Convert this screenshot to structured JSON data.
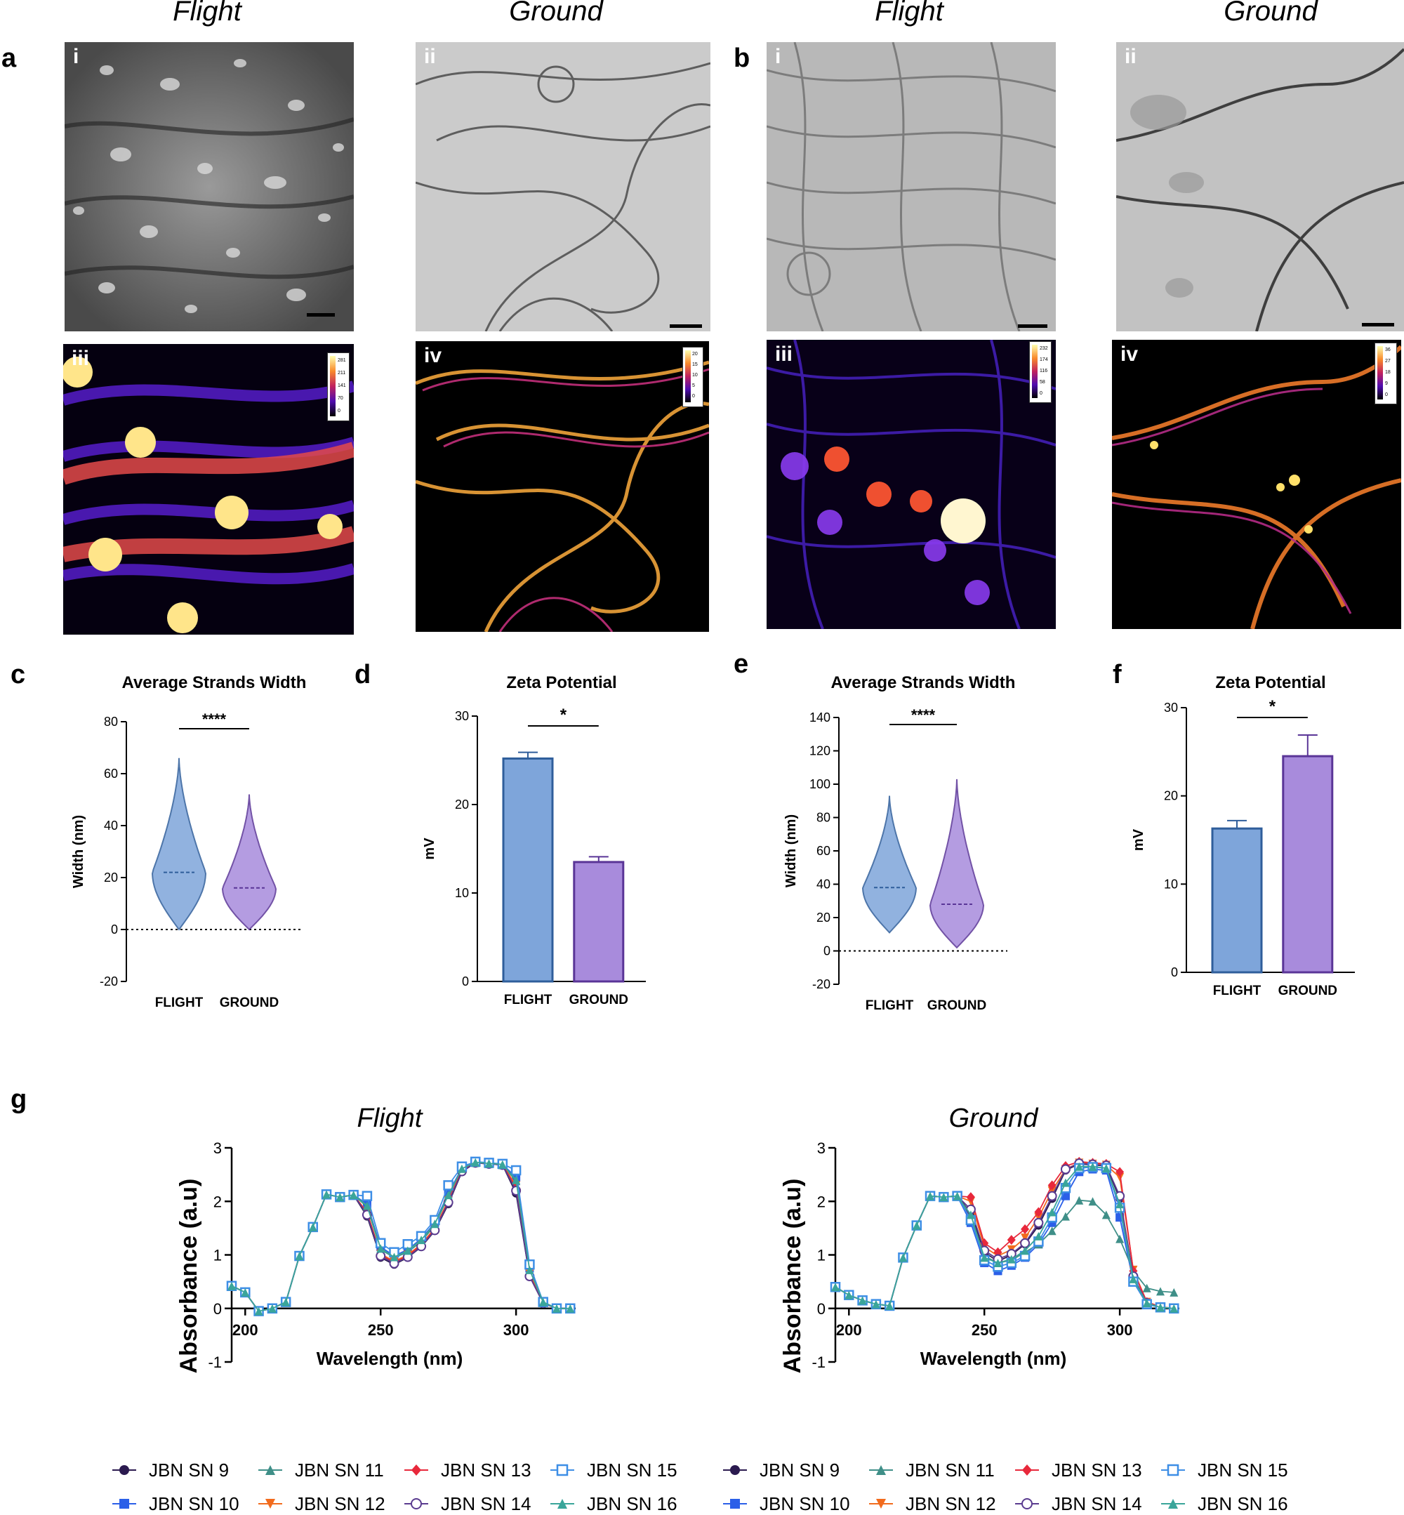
{
  "headers": [
    "Flight",
    "Ground",
    "Flight",
    "Ground"
  ],
  "panel_letters": {
    "a": "a",
    "b": "b",
    "c": "c",
    "d": "d",
    "e": "e",
    "f": "f",
    "g": "g"
  },
  "sub_labels": {
    "a_i": "i",
    "a_ii": "ii",
    "a_iii": "iii",
    "a_iv": "iv",
    "b_i": "i",
    "b_ii": "ii",
    "b_iii": "iii",
    "b_iv": "iv"
  },
  "colorbar_ticks": {
    "a_iii": [
      "281",
      "211",
      "141",
      "70",
      "0"
    ],
    "a_iv": [
      "20",
      "15",
      "10",
      "5",
      "0"
    ],
    "b_iii": [
      "232",
      "174",
      "116",
      "58",
      "0"
    ],
    "b_iv": [
      "36",
      "27",
      "18",
      "9",
      "0"
    ]
  },
  "colors": {
    "flight_fill": "#7ea5da",
    "flight_edge": "#2f5e9b",
    "ground_fill": "#a88bdc",
    "ground_edge": "#5a3597"
  },
  "chart_data": [
    {
      "id": "c",
      "type": "violin",
      "title": "Average Strands Width",
      "ylabel": "Width (nm)",
      "categories": [
        "FLIGHT",
        "GROUND"
      ],
      "ylim": [
        -20,
        80
      ],
      "yticks": [
        -20,
        0,
        20,
        40,
        60,
        80
      ],
      "summary": [
        {
          "min": 0,
          "median": 22,
          "max": 66
        },
        {
          "min": 0,
          "median": 16,
          "max": 52
        }
      ],
      "significance": "****"
    },
    {
      "id": "d",
      "type": "bar",
      "title": "Zeta Potential",
      "ylabel": "mV",
      "categories": [
        "FLIGHT",
        "GROUND"
      ],
      "values": [
        25.2,
        13.5
      ],
      "errors": [
        0.7,
        0.6
      ],
      "ylim": [
        0,
        30
      ],
      "yticks": [
        0,
        10,
        20,
        30
      ],
      "significance": "*"
    },
    {
      "id": "e",
      "type": "violin",
      "title": "Average Strands Width",
      "ylabel": "Width (nm)",
      "categories": [
        "FLIGHT",
        "GROUND"
      ],
      "ylim": [
        -20,
        140
      ],
      "yticks": [
        -20,
        0,
        20,
        40,
        60,
        80,
        100,
        120,
        140
      ],
      "summary": [
        {
          "min": 11,
          "median": 38,
          "max": 93
        },
        {
          "min": 2,
          "median": 28,
          "max": 103
        }
      ],
      "significance": "****"
    },
    {
      "id": "f",
      "type": "bar",
      "title": "Zeta Potential",
      "ylabel": "mV",
      "categories": [
        "FLIGHT",
        "GROUND"
      ],
      "values": [
        16.3,
        24.5
      ],
      "errors": [
        0.9,
        2.4
      ],
      "ylim": [
        0,
        30
      ],
      "yticks": [
        0,
        10,
        20,
        30
      ],
      "significance": "*"
    },
    {
      "id": "g_flight",
      "type": "line",
      "title": "Flight",
      "xlabel": "Wavelength (nm)",
      "ylabel": "Absorbance (a.u)",
      "xlim": [
        195,
        322
      ],
      "ylim": [
        -1,
        3
      ],
      "xticks": [
        200,
        250,
        300
      ],
      "yticks": [
        -1,
        0,
        1,
        2,
        3
      ],
      "x": [
        195,
        200,
        205,
        210,
        215,
        220,
        225,
        230,
        235,
        240,
        245,
        250,
        255,
        260,
        265,
        270,
        275,
        280,
        285,
        290,
        295,
        300,
        305,
        310,
        315,
        320
      ],
      "series": [
        {
          "name": "JBN SN 9",
          "values": [
            0.42,
            0.3,
            -0.05,
            0.0,
            0.12,
            0.98,
            1.52,
            2.13,
            2.08,
            2.12,
            1.72,
            0.95,
            0.82,
            0.95,
            1.15,
            1.45,
            1.95,
            2.55,
            2.72,
            2.7,
            2.68,
            2.15,
            0.6,
            0.1,
            0.0,
            0.0
          ]
        },
        {
          "name": "JBN SN 10",
          "values": [
            0.42,
            0.3,
            -0.05,
            0.0,
            0.12,
            0.98,
            1.52,
            2.13,
            2.08,
            2.12,
            1.95,
            1.15,
            0.98,
            1.1,
            1.3,
            1.6,
            2.15,
            2.62,
            2.73,
            2.71,
            2.69,
            2.45,
            0.75,
            0.12,
            0.0,
            0.0
          ]
        },
        {
          "name": "JBN SN 11",
          "values": [
            0.42,
            0.3,
            -0.05,
            0.0,
            0.12,
            0.98,
            1.52,
            2.13,
            2.08,
            2.12,
            1.9,
            1.1,
            0.95,
            1.05,
            1.25,
            1.55,
            2.1,
            2.6,
            2.72,
            2.7,
            2.68,
            2.38,
            0.7,
            0.12,
            0.0,
            0.0
          ]
        },
        {
          "name": "JBN SN 12",
          "values": [
            0.42,
            0.3,
            -0.05,
            0.0,
            0.12,
            0.98,
            1.52,
            2.13,
            2.08,
            2.12,
            1.8,
            1.02,
            0.88,
            1.0,
            1.2,
            1.5,
            2.02,
            2.58,
            2.72,
            2.7,
            2.68,
            2.3,
            0.65,
            0.1,
            0.0,
            0.0
          ]
        },
        {
          "name": "JBN SN 13",
          "values": [
            0.42,
            0.3,
            -0.05,
            0.0,
            0.12,
            0.98,
            1.52,
            2.13,
            2.08,
            2.12,
            1.78,
            1.0,
            0.86,
            0.98,
            1.18,
            1.48,
            2.0,
            2.57,
            2.72,
            2.7,
            2.68,
            2.25,
            0.62,
            0.1,
            0.0,
            0.0
          ]
        },
        {
          "name": "JBN SN 14",
          "values": [
            0.42,
            0.3,
            -0.05,
            0.0,
            0.12,
            0.98,
            1.52,
            2.13,
            2.08,
            2.12,
            1.75,
            0.98,
            0.84,
            0.96,
            1.16,
            1.46,
            1.98,
            2.56,
            2.72,
            2.7,
            2.68,
            2.2,
            0.6,
            0.1,
            0.0,
            0.0
          ]
        },
        {
          "name": "JBN SN 15",
          "values": [
            0.42,
            0.3,
            -0.05,
            0.0,
            0.12,
            0.98,
            1.52,
            2.13,
            2.08,
            2.12,
            2.1,
            1.22,
            1.05,
            1.2,
            1.35,
            1.65,
            2.3,
            2.65,
            2.74,
            2.72,
            2.7,
            2.58,
            0.82,
            0.12,
            0.0,
            0.0
          ]
        },
        {
          "name": "JBN SN 16",
          "values": [
            0.42,
            0.3,
            -0.05,
            0.0,
            0.12,
            0.98,
            1.52,
            2.13,
            2.08,
            2.12,
            1.92,
            1.12,
            0.96,
            1.08,
            1.28,
            1.58,
            2.12,
            2.61,
            2.73,
            2.71,
            2.69,
            2.4,
            0.72,
            0.12,
            0.0,
            0.0
          ]
        }
      ]
    },
    {
      "id": "g_ground",
      "type": "line",
      "title": "Ground",
      "xlabel": "Wavelength (nm)",
      "ylabel": "Absorbance (a.u)",
      "xlim": [
        195,
        322
      ],
      "ylim": [
        -1,
        3
      ],
      "xticks": [
        200,
        250,
        300
      ],
      "yticks": [
        -1,
        0,
        1,
        2,
        3
      ],
      "x": [
        195,
        200,
        205,
        210,
        215,
        220,
        225,
        230,
        235,
        240,
        245,
        250,
        255,
        260,
        265,
        270,
        275,
        280,
        285,
        290,
        295,
        300,
        305,
        310,
        315,
        320
      ],
      "series": [
        {
          "name": "JBN SN 9",
          "values": [
            0.4,
            0.25,
            0.15,
            0.08,
            0.05,
            0.95,
            1.55,
            2.1,
            2.08,
            2.1,
            1.78,
            1.05,
            0.88,
            1.0,
            1.2,
            1.55,
            2.05,
            2.58,
            2.7,
            2.68,
            2.66,
            2.05,
            0.55,
            0.08,
            0.02,
            0.0
          ]
        },
        {
          "name": "JBN SN 10",
          "values": [
            0.4,
            0.25,
            0.15,
            0.08,
            0.05,
            0.95,
            1.55,
            2.1,
            2.08,
            2.1,
            1.6,
            0.85,
            0.7,
            0.8,
            0.95,
            1.2,
            1.6,
            2.1,
            2.55,
            2.6,
            2.58,
            1.7,
            0.5,
            0.08,
            0.02,
            0.0
          ]
        },
        {
          "name": "JBN SN 11",
          "values": [
            0.4,
            0.25,
            0.15,
            0.08,
            0.05,
            0.95,
            1.55,
            2.1,
            2.08,
            2.1,
            1.7,
            0.98,
            0.85,
            0.9,
            1.05,
            1.2,
            1.45,
            1.72,
            2.02,
            2.0,
            1.75,
            1.3,
            0.7,
            0.38,
            0.32,
            0.3
          ]
        },
        {
          "name": "JBN SN 12",
          "values": [
            0.4,
            0.25,
            0.15,
            0.08,
            0.05,
            0.95,
            1.55,
            2.1,
            2.08,
            2.1,
            2.0,
            1.15,
            0.98,
            1.1,
            1.32,
            1.7,
            2.2,
            2.6,
            2.72,
            2.7,
            2.68,
            2.45,
            0.72,
            0.12,
            0.03,
            0.0
          ]
        },
        {
          "name": "JBN SN 13",
          "values": [
            0.4,
            0.25,
            0.15,
            0.08,
            0.05,
            0.95,
            1.55,
            2.1,
            2.08,
            2.1,
            2.08,
            1.22,
            1.05,
            1.28,
            1.48,
            1.8,
            2.3,
            2.66,
            2.74,
            2.72,
            2.7,
            2.55,
            0.7,
            0.12,
            0.03,
            0.0
          ]
        },
        {
          "name": "JBN SN 14",
          "values": [
            0.4,
            0.25,
            0.15,
            0.08,
            0.05,
            0.95,
            1.55,
            2.1,
            2.08,
            2.1,
            1.85,
            1.08,
            0.92,
            1.02,
            1.22,
            1.6,
            2.1,
            2.6,
            2.71,
            2.69,
            2.67,
            2.1,
            0.6,
            0.1,
            0.02,
            0.0
          ]
        },
        {
          "name": "JBN SN 15",
          "values": [
            0.4,
            0.25,
            0.15,
            0.08,
            0.05,
            0.95,
            1.55,
            2.1,
            2.08,
            2.1,
            1.65,
            0.9,
            0.78,
            0.85,
            0.98,
            1.25,
            1.7,
            2.25,
            2.62,
            2.64,
            2.62,
            1.88,
            0.5,
            0.08,
            0.02,
            0.0
          ]
        },
        {
          "name": "JBN SN 16",
          "values": [
            0.4,
            0.25,
            0.15,
            0.08,
            0.05,
            0.95,
            1.55,
            2.1,
            2.08,
            2.1,
            1.75,
            0.95,
            0.85,
            0.92,
            1.08,
            1.35,
            1.8,
            2.35,
            2.65,
            2.65,
            2.62,
            1.95,
            0.55,
            0.1,
            0.02,
            0.0
          ]
        }
      ]
    }
  ],
  "legend": [
    {
      "name": "JBN SN 9",
      "color": "#2b1a4f",
      "marker": "circle"
    },
    {
      "name": "JBN SN 11",
      "color": "#3f8f88",
      "marker": "triangle"
    },
    {
      "name": "JBN SN 13",
      "color": "#e8283b",
      "marker": "diamond"
    },
    {
      "name": "JBN SN 15",
      "color": "#3d8ee6",
      "marker": "square-open"
    },
    {
      "name": "JBN SN 10",
      "color": "#2b5fe8",
      "marker": "square"
    },
    {
      "name": "JBN SN 12",
      "color": "#f26b1d",
      "marker": "triangle-down"
    },
    {
      "name": "JBN SN 14",
      "color": "#5a3b8f",
      "marker": "circle-open"
    },
    {
      "name": "JBN SN 16",
      "color": "#3aa59a",
      "marker": "triangle"
    }
  ]
}
